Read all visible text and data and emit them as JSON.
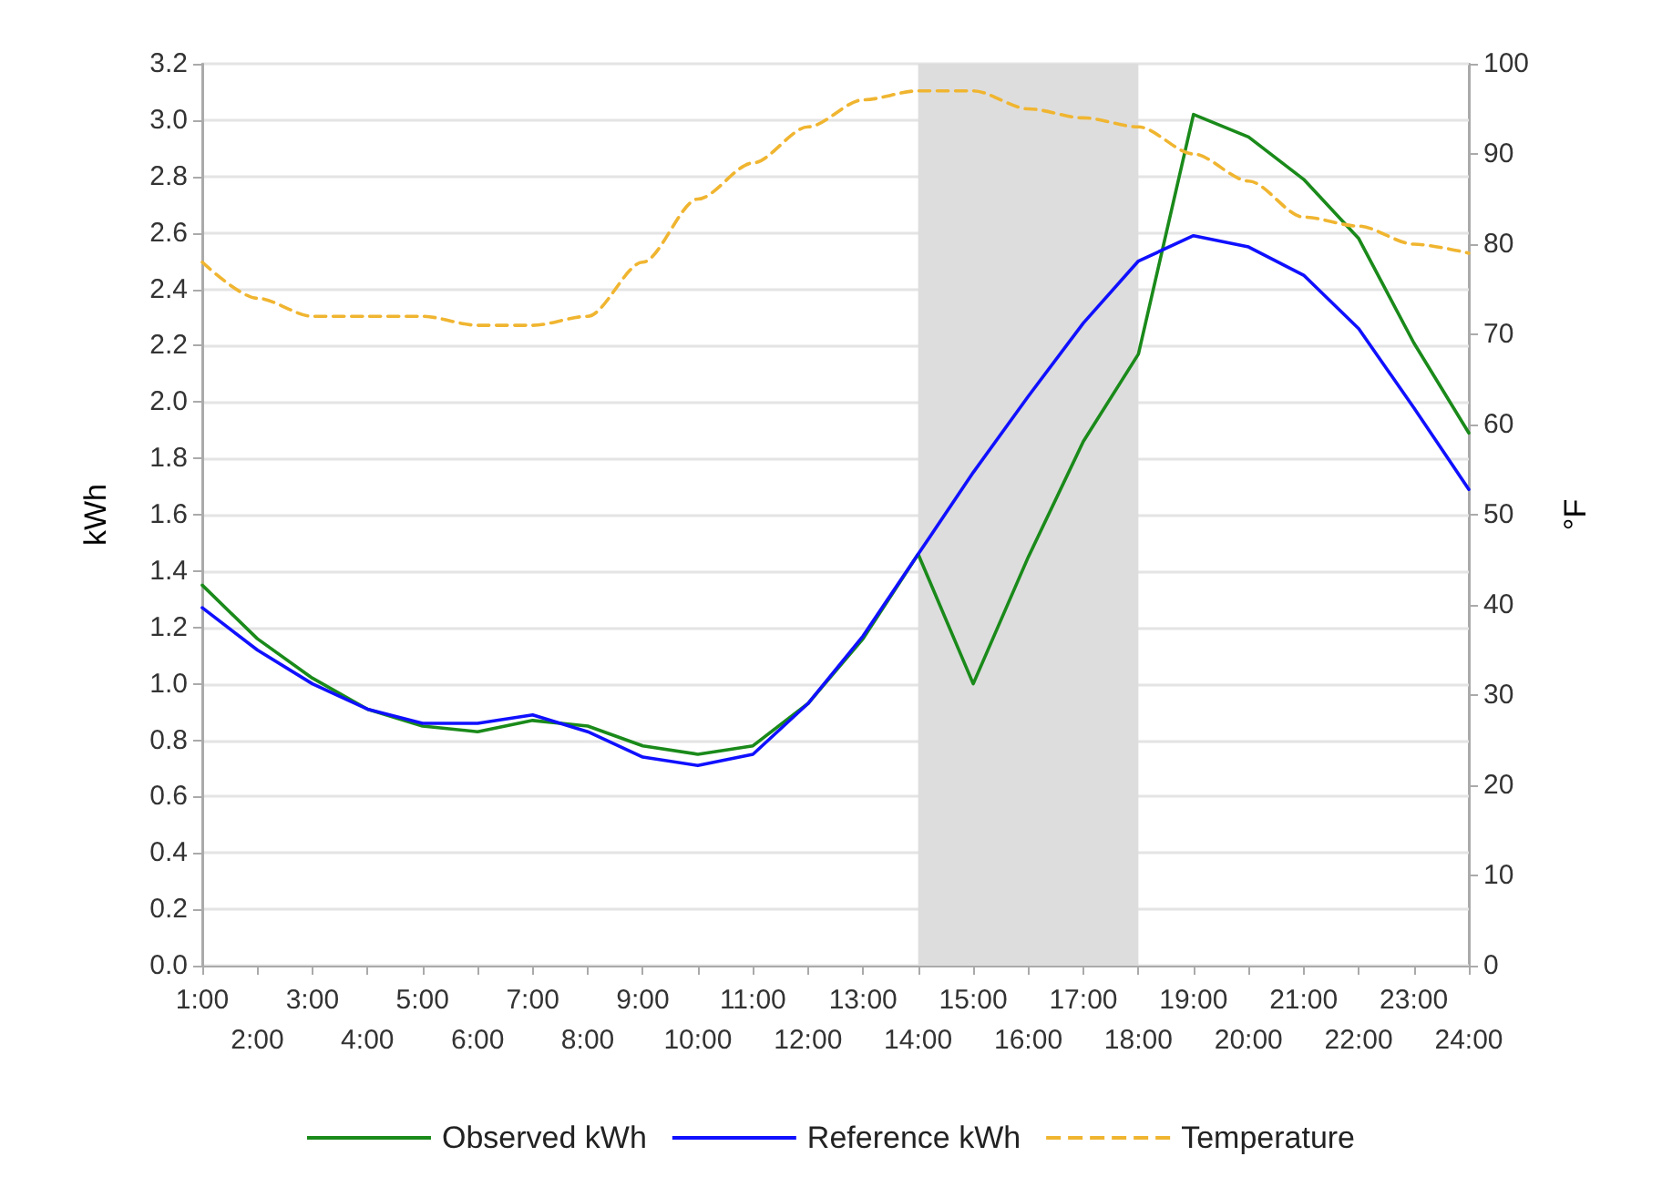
{
  "chart_data": {
    "type": "line",
    "ylabel": "kWh",
    "y2label": "°F",
    "categories": [
      "1:00",
      "2:00",
      "3:00",
      "4:00",
      "5:00",
      "6:00",
      "7:00",
      "8:00",
      "9:00",
      "10:00",
      "11:00",
      "12:00",
      "13:00",
      "14:00",
      "15:00",
      "16:00",
      "17:00",
      "18:00",
      "19:00",
      "20:00",
      "21:00",
      "22:00",
      "23:00",
      "24:00"
    ],
    "series": [
      {
        "name": "Observed kWh",
        "color": "#1a8a1a",
        "line_style": "solid",
        "values": [
          1.35,
          1.16,
          1.02,
          0.91,
          0.85,
          0.83,
          0.87,
          0.85,
          0.78,
          0.75,
          0.78,
          0.93,
          1.16,
          1.46,
          1.0,
          1.45,
          1.86,
          2.17,
          3.02,
          2.94,
          2.79,
          2.58,
          2.21,
          1.89
        ]
      },
      {
        "name": "Reference kWh",
        "color": "#1010ff",
        "line_style": "solid",
        "values": [
          1.27,
          1.12,
          1.0,
          0.91,
          0.86,
          0.86,
          0.89,
          0.83,
          0.74,
          0.71,
          0.75,
          0.93,
          1.17,
          1.46,
          1.75,
          2.02,
          2.28,
          2.5,
          2.59,
          2.55,
          2.45,
          2.26,
          1.98,
          1.69
        ]
      },
      {
        "name": "Temperature",
        "color": "#f0b530",
        "line_style": "dashed",
        "axis": "y2",
        "values": [
          78,
          74,
          72,
          72,
          72,
          71,
          71,
          72,
          78,
          85,
          89,
          93,
          96,
          97,
          97,
          95,
          94,
          93,
          90,
          87,
          83,
          82,
          80,
          79
        ]
      }
    ],
    "ylim": [
      0,
      3.2
    ],
    "yticks": [
      {
        "value": 0,
        "label": "0.0"
      },
      {
        "value": 0.2,
        "label": "0.2"
      },
      {
        "value": 0.4,
        "label": "0.4"
      },
      {
        "value": 0.6,
        "label": "0.6"
      },
      {
        "value": 0.8,
        "label": "0.8"
      },
      {
        "value": 1,
        "label": "1.0"
      },
      {
        "value": 1.2,
        "label": "1.2"
      },
      {
        "value": 1.4,
        "label": "1.4"
      },
      {
        "value": 1.6,
        "label": "1.6"
      },
      {
        "value": 1.8,
        "label": "1.8"
      },
      {
        "value": 2,
        "label": "2.0"
      },
      {
        "value": 2.2,
        "label": "2.2"
      },
      {
        "value": 2.4,
        "label": "2.4"
      },
      {
        "value": 2.6,
        "label": "2.6"
      },
      {
        "value": 2.8,
        "label": "2.8"
      },
      {
        "value": 3,
        "label": "3.0"
      },
      {
        "value": 3.2,
        "label": "3.2"
      }
    ],
    "y2lim": [
      0,
      100
    ],
    "y2ticks": [
      0,
      10,
      20,
      30,
      40,
      50,
      60,
      70,
      80,
      90,
      100
    ],
    "bands": [
      {
        "axis": "x",
        "from": "14:00",
        "to": "18:00",
        "color": "#dddddd"
      }
    ],
    "grid": "y",
    "legend": "bottom",
    "marker": "none"
  }
}
